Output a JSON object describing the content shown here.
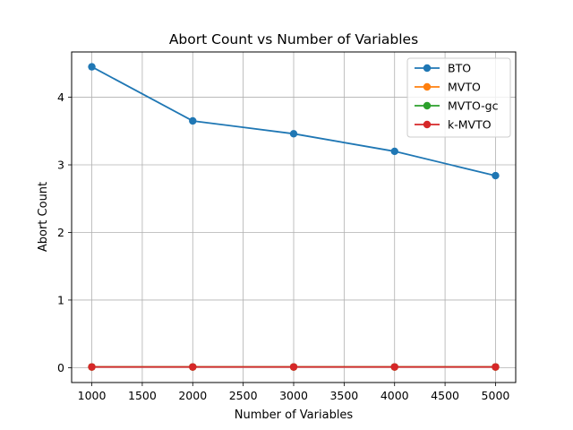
{
  "chart_data": {
    "type": "line",
    "title": "Abort Count vs Number of Variables",
    "xlabel": "Number of Variables",
    "ylabel": "Abort Count",
    "x": [
      1000,
      2000,
      3000,
      4000,
      5000
    ],
    "xlim": [
      800,
      5200
    ],
    "ylim": [
      -0.22,
      4.67
    ],
    "xticks": [
      1000,
      1500,
      2000,
      2500,
      3000,
      3500,
      4000,
      4500,
      5000
    ],
    "yticks": [
      0,
      1,
      2,
      3,
      4
    ],
    "grid": true,
    "legend_position": "top-right",
    "series": [
      {
        "name": "BTO",
        "color": "#1f77b4",
        "values": [
          4.45,
          3.65,
          3.46,
          3.2,
          2.84
        ]
      },
      {
        "name": "MVTO",
        "color": "#ff7f0e",
        "values": [
          0.01,
          0.01,
          0.01,
          0.01,
          0.01
        ]
      },
      {
        "name": "MVTO-gc",
        "color": "#2ca02c",
        "values": [
          0.01,
          0.01,
          0.01,
          0.01,
          0.01
        ]
      },
      {
        "name": "k-MVTO",
        "color": "#d62728",
        "values": [
          0.01,
          0.01,
          0.01,
          0.01,
          0.01
        ]
      }
    ]
  }
}
